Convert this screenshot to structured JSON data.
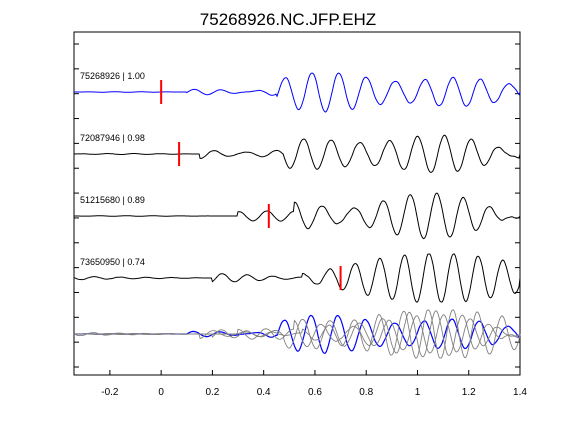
{
  "chart_data": {
    "type": "line",
    "title": "75268926.NC.JFP.EHZ",
    "xlabel": "",
    "ylabel": "",
    "xlim": [
      -0.34,
      1.4
    ],
    "x_ticks": [
      -0.2,
      0,
      0.2,
      0.4,
      0.6,
      0.8,
      1,
      1.2,
      1.4
    ],
    "x_tick_labels": [
      "-0.2",
      "0",
      "0.2",
      "0.4",
      "0.6",
      "0.8",
      "1",
      "1.2",
      "1.4"
    ],
    "grid": false,
    "legend": "none",
    "y_tick_count": 14,
    "colors": {
      "primary": "#0000ff",
      "secondary": "#000000",
      "overlay": "#808080",
      "pick": "#ff0000"
    },
    "traces": [
      {
        "label": "75268926 | 1.00",
        "color": "#0000ff",
        "pick_time": 0.0,
        "segments": [
          [
            -0.34,
            0.1,
            0.02,
            0.0
          ],
          [
            0.1,
            0.45,
            0.1,
            0.3
          ],
          [
            0.45,
            1.4,
            0.9,
            0.96
          ]
        ],
        "freq": [
          9,
          10,
          11
        ]
      },
      {
        "label": "72087946 | 0.98",
        "color": "#000000",
        "pick_time": 0.07,
        "segments": [
          [
            -0.34,
            0.15,
            0.04,
            0.0
          ],
          [
            0.15,
            0.48,
            0.25,
            0.27
          ],
          [
            0.48,
            1.4,
            0.9,
            0.96
          ]
        ],
        "freq": [
          9,
          10,
          11
        ]
      },
      {
        "label": "51215680 | 0.89",
        "color": "#000000",
        "pick_time": 0.42,
        "segments": [
          [
            -0.34,
            0.3,
            0.02,
            0.0
          ],
          [
            0.3,
            0.52,
            0.35,
            0.3
          ],
          [
            0.52,
            1.4,
            0.9,
            0.96
          ]
        ],
        "freq": [
          9,
          10,
          11
        ]
      },
      {
        "label": "73650950 | 0.74",
        "color": "#000000",
        "pick_time": 0.7,
        "segments": [
          [
            -0.34,
            0.2,
            0.1,
            0.0
          ],
          [
            0.2,
            0.55,
            0.3,
            0.2
          ],
          [
            0.55,
            1.4,
            0.9,
            0.96
          ]
        ],
        "freq": [
          10,
          10,
          12
        ]
      }
    ],
    "overlay_label": ""
  }
}
